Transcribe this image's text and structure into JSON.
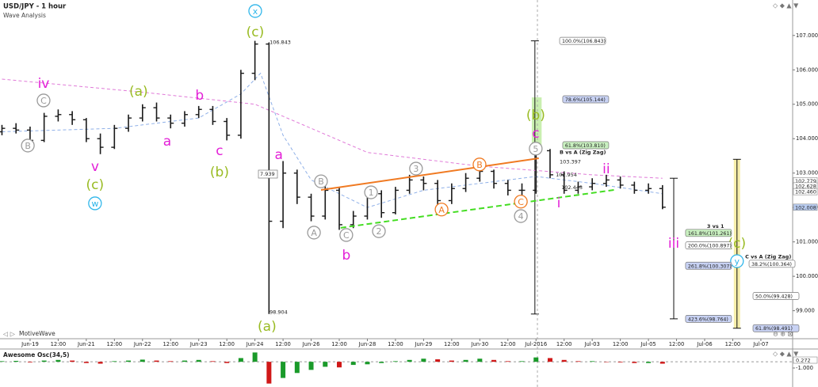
{
  "chart_data": {
    "type": "ohlc",
    "title": "USD/JPY - 1 hour",
    "subtitle": "Wave Analysis",
    "watermark": "MotiveWave",
    "color": "#1a1a1a",
    "x": [
      -1,
      -0.5,
      0,
      0.5,
      1,
      1.5,
      2,
      2.5,
      3,
      3.5,
      4,
      4.5,
      5,
      5.5,
      6,
      6.5,
      7,
      7.5,
      8,
      8.5,
      9,
      9.5,
      10,
      10.5,
      11,
      11.5,
      12,
      12.5,
      13,
      13.5,
      14,
      14.5,
      15,
      15.5,
      16,
      16.5,
      17,
      17.5,
      18,
      18.5,
      19,
      19.5,
      20,
      20.5,
      21,
      21.5,
      22,
      22.5
    ],
    "open": [
      104.2,
      104.3,
      104.25,
      103.95,
      104.65,
      104.7,
      104.55,
      104.0,
      103.75,
      104.3,
      104.6,
      104.9,
      104.6,
      104.45,
      104.7,
      104.85,
      104.5,
      104.1,
      105.9,
      106.75,
      101.6,
      103.0,
      102.3,
      101.75,
      102.5,
      101.5,
      101.75,
      102.4,
      101.85,
      102.5,
      102.8,
      102.7,
      102.2,
      102.55,
      102.85,
      103.05,
      102.7,
      102.5,
      102.5,
      103.65,
      102.95,
      102.5,
      102.6,
      102.7,
      102.8,
      102.65,
      102.5,
      102.55
    ],
    "high": [
      104.4,
      104.45,
      104.35,
      104.75,
      104.85,
      104.8,
      104.6,
      104.15,
      104.4,
      104.7,
      105.0,
      105.05,
      104.7,
      104.8,
      104.95,
      104.95,
      104.6,
      106.0,
      106.843,
      106.8,
      103.35,
      103.1,
      102.4,
      102.7,
      102.6,
      101.9,
      102.55,
      102.5,
      102.6,
      102.95,
      102.9,
      102.8,
      102.7,
      103.0,
      103.2,
      103.1,
      102.8,
      102.7,
      103.75,
      103.7,
      103.05,
      102.75,
      102.85,
      102.95,
      102.9,
      102.75,
      102.7,
      102.65
    ],
    "low": [
      104.1,
      104.15,
      103.8,
      103.9,
      104.5,
      104.4,
      103.9,
      103.55,
      103.7,
      104.2,
      104.5,
      104.5,
      104.3,
      104.35,
      104.6,
      104.4,
      103.95,
      104.0,
      105.7,
      98.904,
      101.4,
      102.1,
      101.6,
      101.65,
      101.35,
      101.4,
      101.65,
      101.7,
      101.8,
      102.4,
      102.5,
      102.05,
      102.1,
      102.45,
      102.75,
      102.55,
      102.35,
      102.3,
      102.4,
      102.85,
      102.4,
      102.4,
      102.5,
      102.6,
      102.55,
      102.4,
      102.4,
      101.95
    ],
    "close": [
      104.3,
      104.25,
      103.95,
      104.65,
      104.7,
      104.55,
      104.0,
      103.75,
      104.3,
      104.6,
      104.9,
      104.6,
      104.45,
      104.7,
      104.85,
      104.5,
      104.1,
      105.9,
      106.75,
      101.6,
      103.0,
      102.3,
      101.75,
      102.5,
      101.5,
      101.75,
      102.4,
      101.85,
      102.5,
      102.8,
      102.7,
      102.2,
      102.55,
      102.85,
      103.05,
      102.7,
      102.5,
      102.5,
      103.65,
      102.95,
      102.5,
      102.6,
      102.7,
      102.8,
      102.65,
      102.5,
      102.55,
      102.008
    ],
    "xlim": [
      -1.07,
      27.13
    ],
    "xticks": [
      {
        "value": 0,
        "label": "Jun-19"
      },
      {
        "value": 1,
        "label": "12:00"
      },
      {
        "value": 2,
        "label": "Jun-21"
      },
      {
        "value": 3,
        "label": "12:00"
      },
      {
        "value": 4,
        "label": "Jun-22"
      },
      {
        "value": 5,
        "label": "12:00"
      },
      {
        "value": 6,
        "label": "Jun-23"
      },
      {
        "value": 7,
        "label": "12:00"
      },
      {
        "value": 8,
        "label": "Jun-24"
      },
      {
        "value": 9,
        "label": "12:00"
      },
      {
        "value": 10,
        "label": "Jun-26"
      },
      {
        "value": 11,
        "label": "12:00"
      },
      {
        "value": 12,
        "label": "Jun-28"
      },
      {
        "value": 13,
        "label": "12:00"
      },
      {
        "value": 14,
        "label": "Jun-29"
      },
      {
        "value": 15,
        "label": "12:00"
      },
      {
        "value": 16,
        "label": "Jun-30"
      },
      {
        "value": 17,
        "label": "12:00"
      },
      {
        "value": 18,
        "label": "Jul-2016"
      },
      {
        "value": 19,
        "label": "12:00"
      },
      {
        "value": 20,
        "label": "Jul-03"
      },
      {
        "value": 21,
        "label": "12:00"
      },
      {
        "value": 22,
        "label": "Jul-05"
      },
      {
        "value": 23,
        "label": "12:00"
      },
      {
        "value": 24,
        "label": "Jul-06"
      },
      {
        "value": 25,
        "label": "12:00"
      },
      {
        "value": 26,
        "label": "Jul-07"
      }
    ],
    "ylim": [
      98.6,
      107.8
    ],
    "yticks": [
      {
        "value": 99,
        "label": "99.000"
      },
      {
        "value": 100,
        "label": "100.000"
      },
      {
        "value": 101,
        "label": "101.000"
      },
      {
        "value": 102,
        "label": "102.000"
      },
      {
        "value": 103,
        "label": "103.000"
      },
      {
        "value": 104,
        "label": "104.000"
      },
      {
        "value": 105,
        "label": "105.000"
      },
      {
        "value": 106,
        "label": "106.000"
      },
      {
        "value": 107,
        "label": "107.000"
      }
    ],
    "price_labels": [
      {
        "value": 102.779,
        "label": "102.779",
        "fill": "#ffffff"
      },
      {
        "value": 102.628,
        "label": "102.628",
        "fill": "#ffffff"
      },
      {
        "value": 102.46,
        "label": "102.460",
        "fill": "#ffffff"
      },
      {
        "value": 102.008,
        "label": "102.008",
        "fill": "#b9cdf2"
      }
    ],
    "overlays": [
      {
        "color": "#e07ad8",
        "x": [
          -1,
          4,
          8,
          12,
          16,
          20,
          22.5
        ],
        "values": [
          105.73,
          105.35,
          105.0,
          103.6,
          103.2,
          102.95,
          102.85
        ]
      },
      {
        "color": "#8fb0e8",
        "x": [
          -1,
          3,
          6,
          7.5,
          8.2,
          9,
          10,
          12,
          14,
          16,
          18,
          20,
          22.5
        ],
        "values": [
          104.2,
          104.3,
          104.6,
          105.3,
          105.9,
          104.1,
          102.8,
          102.0,
          102.5,
          102.7,
          102.9,
          102.7,
          102.4
        ]
      }
    ],
    "trendlines": [
      {
        "color": "#f07a22",
        "dashed": false,
        "x": [
          10.35,
          18.1
        ],
        "values": [
          102.51,
          103.43
        ]
      },
      {
        "color": "#44dd22",
        "dashed": true,
        "x": [
          11.05,
          20.78
        ],
        "values": [
          101.41,
          102.51
        ]
      }
    ],
    "bands": [
      {
        "color": "#c9efb0",
        "x": [
          17.85,
          18.2
        ],
        "values": [
          105.2,
          103.7
        ]
      }
    ],
    "measures": [
      {
        "x": 17.96,
        "values": [
          106.843,
          98.904
        ],
        "band": null
      },
      {
        "x": 22.9,
        "values": [
          102.85,
          98.764
        ],
        "band": null
      },
      {
        "x": 25.15,
        "values": [
          103.4,
          98.491
        ],
        "band": "#f6eeaa"
      }
    ],
    "cursor_x": 18.05,
    "waves": [
      {
        "text": "iv",
        "color": "#e31fd7",
        "x": 0.48,
        "y": 105.62,
        "circled": false
      },
      {
        "text": "C",
        "color": "#9a9a9a",
        "x": 0.48,
        "y": 105.11,
        "circled": true
      },
      {
        "text": "B",
        "color": "#9a9a9a",
        "x": -0.08,
        "y": 103.8,
        "circled": true
      },
      {
        "text": "v",
        "color": "#e31fd7",
        "x": 2.31,
        "y": 103.2,
        "circled": false
      },
      {
        "text": "(c)",
        "color": "#99bb22",
        "x": 2.31,
        "y": 102.67,
        "circled": false
      },
      {
        "text": "w",
        "color": "#2fb6ea",
        "x": 2.31,
        "y": 102.12,
        "circled": true
      },
      {
        "text": "(a)",
        "color": "#99bb22",
        "x": 3.86,
        "y": 105.39,
        "circled": false
      },
      {
        "text": "a",
        "color": "#e31fd7",
        "x": 4.88,
        "y": 103.94,
        "circled": false
      },
      {
        "text": "b",
        "color": "#e31fd7",
        "x": 6.03,
        "y": 105.27,
        "circled": false
      },
      {
        "text": "c",
        "color": "#e31fd7",
        "x": 6.74,
        "y": 103.66,
        "circled": false
      },
      {
        "text": "(b)",
        "color": "#99bb22",
        "x": 6.74,
        "y": 103.04,
        "circled": false
      },
      {
        "text": "x",
        "color": "#2fb6ea",
        "x": 8.01,
        "y": 107.71,
        "circled": true
      },
      {
        "text": "(c)",
        "color": "#99bb22",
        "x": 8.01,
        "y": 107.11,
        "circled": false
      },
      {
        "text": "(a)",
        "color": "#99bb22",
        "x": 8.43,
        "y": 98.55,
        "circled": false
      },
      {
        "text": "a",
        "color": "#e31fd7",
        "x": 8.85,
        "y": 103.55,
        "circled": false
      },
      {
        "text": "B",
        "color": "#9a9a9a",
        "x": 10.35,
        "y": 102.76,
        "circled": true
      },
      {
        "text": "A",
        "color": "#9a9a9a",
        "x": 10.1,
        "y": 101.27,
        "circled": true
      },
      {
        "text": "C",
        "color": "#9a9a9a",
        "x": 11.25,
        "y": 101.2,
        "circled": true
      },
      {
        "text": "b",
        "color": "#e31fd7",
        "x": 11.25,
        "y": 100.62,
        "circled": false
      },
      {
        "text": "1",
        "color": "#9a9a9a",
        "x": 12.13,
        "y": 102.44,
        "circled": true
      },
      {
        "text": "2",
        "color": "#9a9a9a",
        "x": 12.41,
        "y": 101.31,
        "circled": true
      },
      {
        "text": "3",
        "color": "#9a9a9a",
        "x": 13.73,
        "y": 103.13,
        "circled": true
      },
      {
        "text": "A",
        "color": "#f07a22",
        "x": 14.64,
        "y": 101.94,
        "circled": true
      },
      {
        "text": "B",
        "color": "#f07a22",
        "x": 15.99,
        "y": 103.25,
        "circled": true
      },
      {
        "text": "C",
        "color": "#f07a22",
        "x": 17.46,
        "y": 102.17,
        "circled": true
      },
      {
        "text": "4",
        "color": "#9a9a9a",
        "x": 17.46,
        "y": 101.75,
        "circled": true
      },
      {
        "text": "5",
        "color": "#9a9a9a",
        "x": 17.99,
        "y": 103.71,
        "circled": true
      },
      {
        "text": "c",
        "color": "#e31fd7",
        "x": 17.99,
        "y": 104.17,
        "circled": false
      },
      {
        "text": "(b)",
        "color": "#99bb22",
        "x": 17.99,
        "y": 104.7,
        "circled": false
      },
      {
        "text": "i",
        "color": "#e31fd7",
        "x": 18.81,
        "y": 102.14,
        "circled": false
      },
      {
        "text": "ii",
        "color": "#e31fd7",
        "x": 20.5,
        "y": 103.13,
        "circled": false
      },
      {
        "text": "iii",
        "color": "#e31fd7",
        "x": 22.9,
        "y": 100.97,
        "circled": false
      },
      {
        "text": "(c)",
        "color": "#99bb22",
        "x": 25.15,
        "y": 100.97,
        "circled": false
      },
      {
        "text": "y",
        "color": "#2fb6ea",
        "x": 25.15,
        "y": 100.44,
        "circled": true
      }
    ],
    "fib": [
      {
        "label": "100.0%(106.843)",
        "value": 106.843,
        "x": 18.84,
        "fill": "#ffffff"
      },
      {
        "label": "78.6%(105.144)",
        "value": 105.144,
        "x": 18.95,
        "fill": "#c8d2f4"
      },
      {
        "label": "61.8%(103.810)",
        "value": 103.81,
        "x": 18.95,
        "fill": "#c9f0c0"
      },
      {
        "label": "161.8%(101.261)",
        "value": 101.261,
        "x": 23.32,
        "fill": "#c9f0c0"
      },
      {
        "label": "200.0%(100.897)",
        "value": 100.897,
        "x": 23.32,
        "fill": "#ffffff"
      },
      {
        "label": "261.8%(100.307)",
        "value": 100.307,
        "x": 23.32,
        "fill": "#c8d2f4"
      },
      {
        "label": "423.6%(98.764)",
        "value": 98.764,
        "x": 23.32,
        "fill": "#c8d2f4"
      },
      {
        "label": "38.2%(100.364)",
        "value": 100.364,
        "x": 25.58,
        "fill": "#ffffff"
      },
      {
        "label": "50.0%(99.428)",
        "value": 99.428,
        "x": 25.72,
        "fill": "#ffffff"
      },
      {
        "label": "61.8%(98.491)",
        "value": 98.491,
        "x": 25.72,
        "fill": "#c8d2f4"
      }
    ],
    "notes": [
      {
        "label": "B vs A (Zig Zag)",
        "x": 18.84,
        "y": 103.6,
        "bold": true,
        "boxed": false
      },
      {
        "label": "103.397",
        "x": 18.84,
        "y": 103.33,
        "bold": false,
        "boxed": false
      },
      {
        "label": "102.954",
        "x": 18.7,
        "y": 102.95,
        "bold": false,
        "boxed": false
      },
      {
        "label": "102.443",
        "x": 18.9,
        "y": 102.58,
        "bold": false,
        "boxed": false
      },
      {
        "label": "3 vs 1",
        "x": 24.08,
        "y": 101.45,
        "bold": true,
        "boxed": false
      },
      {
        "label": "C vs A (Zig Zag)",
        "x": 25.44,
        "y": 100.57,
        "bold": true,
        "boxed": false
      },
      {
        "label": "106.843",
        "x": 8.52,
        "y": 106.8,
        "bold": false,
        "boxed": false
      },
      {
        "label": "98.904",
        "x": 8.52,
        "y": 98.96,
        "bold": false,
        "boxed": false
      },
      {
        "label": "7.939",
        "x": 8.18,
        "y": 102.97,
        "bold": false,
        "boxed": true
      }
    ],
    "oscillator": {
      "title": "Awesome Osc(34,5)",
      "up_color": "#1a9a2a",
      "down_color": "#d01818",
      "values": [
        0.1,
        0.15,
        -0.1,
        0.2,
        0.3,
        0.2,
        -0.2,
        -0.3,
        0.1,
        0.2,
        0.35,
        0.2,
        0.1,
        0.2,
        0.3,
        0.1,
        -0.2,
        0.6,
        1.5,
        -3.5,
        -2.6,
        -1.8,
        -1.3,
        -0.8,
        -0.9,
        -0.5,
        -0.4,
        -0.2,
        0.1,
        0.3,
        0.5,
        0.4,
        0.2,
        0.3,
        0.5,
        0.3,
        0.1,
        0.1,
        0.7,
        0.6,
        0.3,
        0.1,
        0.1,
        0.0,
        -0.1,
        -0.2,
        -0.2,
        -0.3
      ],
      "ylim": [
        -3.8,
        1.93
      ],
      "yticks": [
        {
          "value": -1,
          "label": "-1.000"
        }
      ],
      "current": {
        "value": 0.272,
        "label": "0.272"
      }
    }
  }
}
